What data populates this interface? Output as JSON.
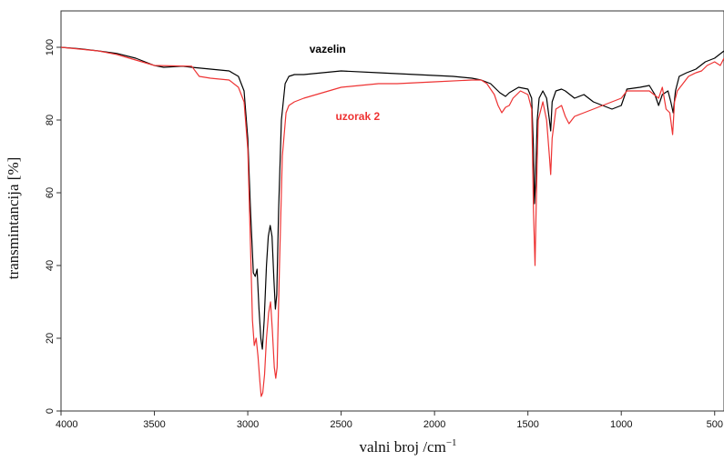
{
  "chart_data": {
    "type": "line",
    "xlabel": "valni broj /cm",
    "xlabel_sup": "−1",
    "ylabel": "transmintancija [%]",
    "xlim": [
      4000,
      450
    ],
    "ylim": [
      0,
      105
    ],
    "x_reversed": true,
    "grid": false,
    "x_ticks": [
      4000,
      3500,
      3000,
      2500,
      2000,
      1500,
      1000,
      500
    ],
    "y_ticks": [
      0,
      20,
      40,
      60,
      80,
      100
    ],
    "series": [
      {
        "name": "vazelin",
        "color": "#000000",
        "label_at": [
          2670,
          98.5
        ],
        "points": [
          [
            4000,
            100
          ],
          [
            3900,
            99.6
          ],
          [
            3800,
            99
          ],
          [
            3700,
            98.3
          ],
          [
            3600,
            97
          ],
          [
            3500,
            95
          ],
          [
            3450,
            94.5
          ],
          [
            3350,
            94.8
          ],
          [
            3300,
            94.5
          ],
          [
            3200,
            94
          ],
          [
            3100,
            93.5
          ],
          [
            3050,
            92
          ],
          [
            3020,
            88
          ],
          [
            3000,
            75
          ],
          [
            2985,
            55
          ],
          [
            2970,
            38
          ],
          [
            2960,
            37
          ],
          [
            2950,
            39
          ],
          [
            2940,
            28
          ],
          [
            2930,
            20
          ],
          [
            2922,
            17
          ],
          [
            2912,
            25
          ],
          [
            2900,
            40
          ],
          [
            2890,
            48
          ],
          [
            2880,
            51
          ],
          [
            2870,
            48
          ],
          [
            2860,
            36
          ],
          [
            2852,
            28
          ],
          [
            2845,
            32
          ],
          [
            2835,
            55
          ],
          [
            2820,
            80
          ],
          [
            2800,
            90
          ],
          [
            2780,
            92
          ],
          [
            2750,
            92.5
          ],
          [
            2700,
            92.5
          ],
          [
            2600,
            93
          ],
          [
            2500,
            93.5
          ],
          [
            2300,
            93
          ],
          [
            2100,
            92.5
          ],
          [
            1900,
            92
          ],
          [
            1800,
            91.5
          ],
          [
            1750,
            91
          ],
          [
            1700,
            90
          ],
          [
            1650,
            87.5
          ],
          [
            1620,
            86.5
          ],
          [
            1600,
            87.5
          ],
          [
            1550,
            89
          ],
          [
            1500,
            88.5
          ],
          [
            1480,
            86
          ],
          [
            1470,
            72
          ],
          [
            1465,
            57
          ],
          [
            1460,
            62
          ],
          [
            1450,
            80
          ],
          [
            1440,
            86
          ],
          [
            1420,
            88
          ],
          [
            1400,
            86
          ],
          [
            1385,
            80
          ],
          [
            1378,
            77
          ],
          [
            1370,
            85
          ],
          [
            1350,
            88
          ],
          [
            1320,
            88.5
          ],
          [
            1300,
            88
          ],
          [
            1250,
            86
          ],
          [
            1200,
            87
          ],
          [
            1150,
            85
          ],
          [
            1100,
            84
          ],
          [
            1050,
            83
          ],
          [
            1000,
            84
          ],
          [
            970,
            88.5
          ],
          [
            900,
            89
          ],
          [
            850,
            89.5
          ],
          [
            820,
            87
          ],
          [
            800,
            84
          ],
          [
            780,
            87
          ],
          [
            750,
            88
          ],
          [
            735,
            85
          ],
          [
            722,
            82
          ],
          [
            710,
            88
          ],
          [
            690,
            92
          ],
          [
            650,
            93
          ],
          [
            600,
            94
          ],
          [
            550,
            96
          ],
          [
            500,
            97
          ],
          [
            450,
            99
          ]
        ]
      },
      {
        "name": "uzorak 2",
        "color": "#ee3333",
        "label_at": [
          2530,
          80
        ],
        "points": [
          [
            4000,
            100
          ],
          [
            3900,
            99.5
          ],
          [
            3800,
            99
          ],
          [
            3700,
            98
          ],
          [
            3600,
            96.5
          ],
          [
            3500,
            95
          ],
          [
            3300,
            94.8
          ],
          [
            3260,
            92
          ],
          [
            3200,
            91.5
          ],
          [
            3100,
            91
          ],
          [
            3050,
            89
          ],
          [
            3020,
            85
          ],
          [
            3000,
            72
          ],
          [
            2985,
            45
          ],
          [
            2975,
            25
          ],
          [
            2965,
            18
          ],
          [
            2955,
            20
          ],
          [
            2945,
            15
          ],
          [
            2935,
            8
          ],
          [
            2928,
            4
          ],
          [
            2920,
            5
          ],
          [
            2910,
            10
          ],
          [
            2900,
            20
          ],
          [
            2888,
            27
          ],
          [
            2878,
            30
          ],
          [
            2868,
            22
          ],
          [
            2858,
            12
          ],
          [
            2850,
            9
          ],
          [
            2843,
            12
          ],
          [
            2830,
            40
          ],
          [
            2815,
            70
          ],
          [
            2795,
            82
          ],
          [
            2780,
            84
          ],
          [
            2750,
            85
          ],
          [
            2700,
            86
          ],
          [
            2600,
            87.5
          ],
          [
            2500,
            89
          ],
          [
            2400,
            89.5
          ],
          [
            2300,
            90
          ],
          [
            2200,
            90
          ],
          [
            2000,
            90.5
          ],
          [
            1800,
            91
          ],
          [
            1750,
            91
          ],
          [
            1720,
            90
          ],
          [
            1680,
            87
          ],
          [
            1660,
            84
          ],
          [
            1640,
            82
          ],
          [
            1620,
            83.5
          ],
          [
            1600,
            84
          ],
          [
            1580,
            86
          ],
          [
            1540,
            88
          ],
          [
            1500,
            87
          ],
          [
            1480,
            83
          ],
          [
            1470,
            55
          ],
          [
            1462,
            40
          ],
          [
            1455,
            58
          ],
          [
            1445,
            80
          ],
          [
            1420,
            85
          ],
          [
            1400,
            80
          ],
          [
            1385,
            70
          ],
          [
            1378,
            65
          ],
          [
            1370,
            75
          ],
          [
            1350,
            83
          ],
          [
            1320,
            84
          ],
          [
            1300,
            81
          ],
          [
            1280,
            79
          ],
          [
            1250,
            81
          ],
          [
            1200,
            82
          ],
          [
            1150,
            83
          ],
          [
            1100,
            84
          ],
          [
            1050,
            85
          ],
          [
            1000,
            86
          ],
          [
            970,
            88
          ],
          [
            900,
            88
          ],
          [
            850,
            88
          ],
          [
            800,
            86
          ],
          [
            780,
            89
          ],
          [
            760,
            83
          ],
          [
            740,
            82
          ],
          [
            725,
            76
          ],
          [
            715,
            85
          ],
          [
            700,
            88
          ],
          [
            670,
            90
          ],
          [
            640,
            92
          ],
          [
            600,
            93
          ],
          [
            570,
            93.5
          ],
          [
            540,
            95
          ],
          [
            500,
            96
          ],
          [
            470,
            95
          ],
          [
            450,
            97
          ]
        ]
      }
    ]
  }
}
